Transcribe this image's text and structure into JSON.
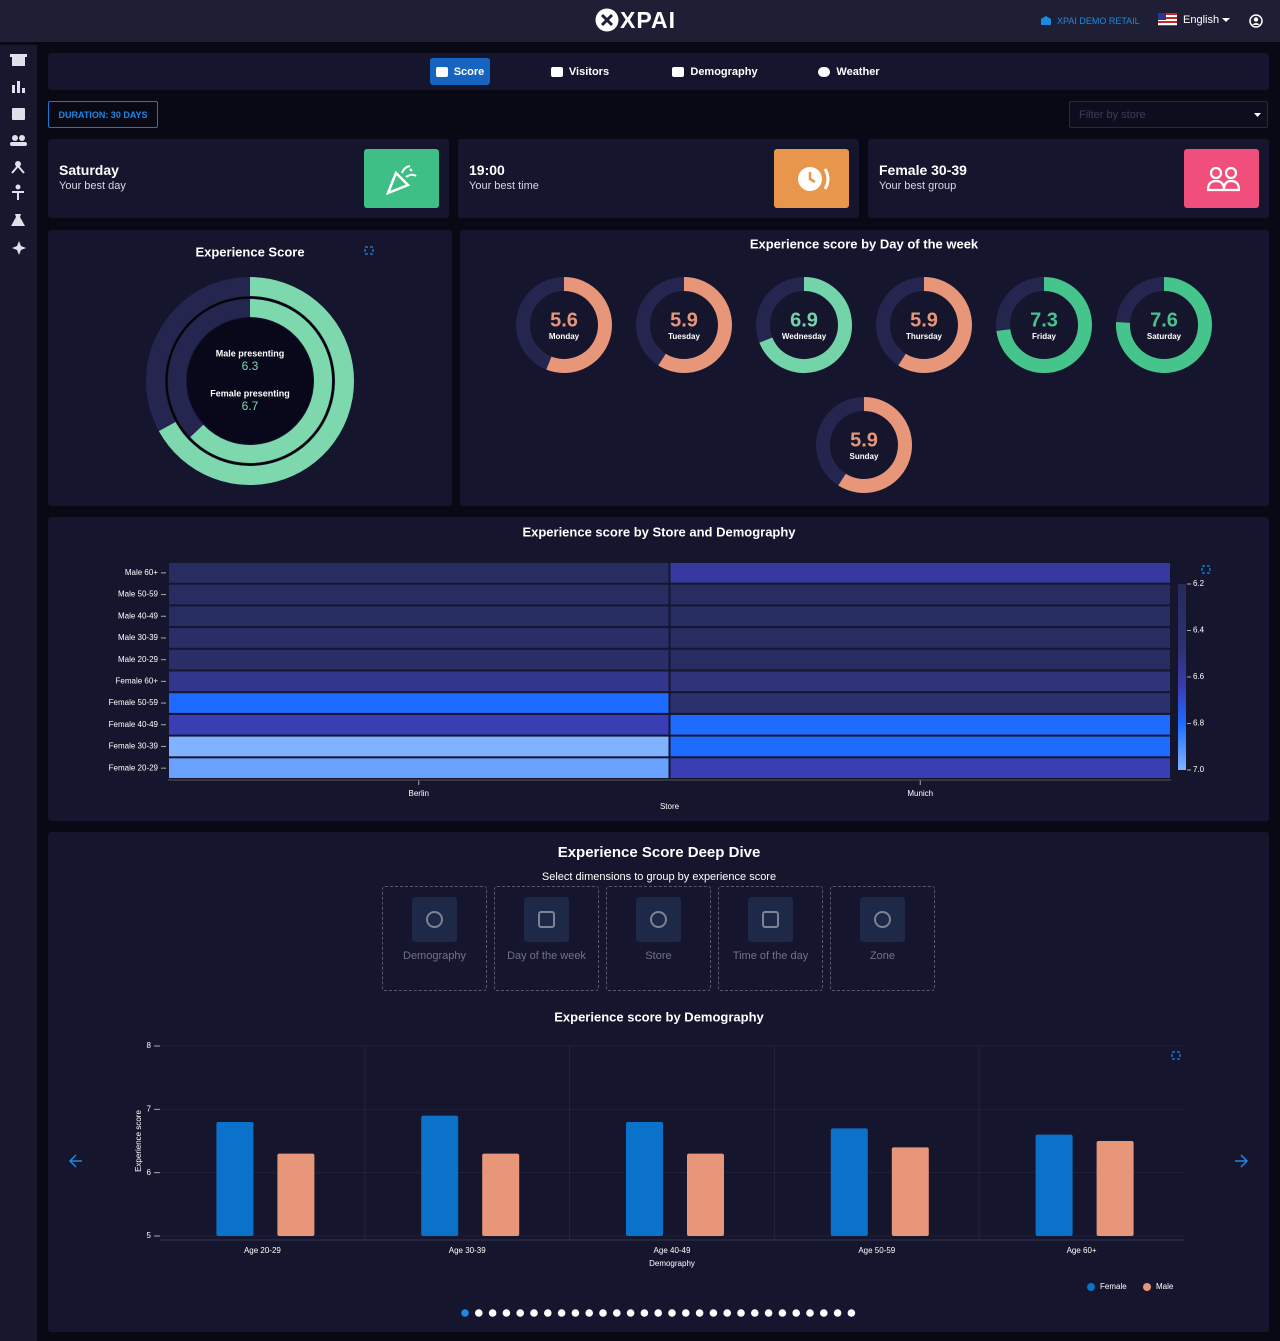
{
  "header": {
    "logo": "XPAI",
    "account": "XPAI DEMO RETAIL",
    "language": "English"
  },
  "tabs": [
    "Score",
    "Visitors",
    "Demography",
    "Weather"
  ],
  "toolbar": {
    "duration": "DURATION: 30 DAYS",
    "filter_placeholder": "Filter by store"
  },
  "cards": [
    {
      "title": "Saturday",
      "subtitle": "Your best day",
      "color": "#3dbf85"
    },
    {
      "title": "19:00",
      "subtitle": "Your best time",
      "color": "#e8964b"
    },
    {
      "title": "Female 30-39",
      "subtitle": "Your best group",
      "color": "#ef4f7a"
    }
  ],
  "deep_dive": {
    "title": "Experience Score Deep Dive",
    "subtitle": "Select dimensions to group by experience score",
    "dimensions": [
      "Demography",
      "Day of the week",
      "Store",
      "Time of the day",
      "Zone"
    ]
  },
  "chart_data": [
    {
      "type": "donut",
      "title": "Experience Score",
      "range": [
        0,
        10
      ],
      "track_color": "#25264f",
      "series": [
        {
          "name": "Male presenting",
          "value": 6.3,
          "color": "#7dd8ad"
        },
        {
          "name": "Female presenting",
          "value": 6.7,
          "color": "#7dd8ad"
        }
      ]
    },
    {
      "type": "gauges",
      "title": "Experience score by Day of the week",
      "range": [
        0,
        10
      ],
      "track_color": "#25264f",
      "categories": [
        "Monday",
        "Tuesday",
        "Wednesday",
        "Thursday",
        "Friday",
        "Saturday",
        "Sunday"
      ],
      "values": [
        5.6,
        5.9,
        6.9,
        5.9,
        7.3,
        7.6,
        5.9
      ],
      "colors": [
        "#e8967a",
        "#e8967a",
        "#72d4a8",
        "#e8967a",
        "#45c58c",
        "#45c58c",
        "#e8967a"
      ]
    },
    {
      "type": "heatmap",
      "title": "Experience score by Store and Demography",
      "xlabel": "Store",
      "x": [
        "Berlin",
        "Munich"
      ],
      "categories": [
        "Male 60+",
        "Male 50-59",
        "Male 40-49",
        "Male 30-39",
        "Male 20-29",
        "Female 60+",
        "Female 50-59",
        "Female 40-49",
        "Female 30-39",
        "Female 20-29"
      ],
      "values": [
        [
          6.3,
          6.6
        ],
        [
          6.3,
          6.3
        ],
        [
          6.3,
          6.3
        ],
        [
          6.35,
          6.3
        ],
        [
          6.35,
          6.3
        ],
        [
          6.55,
          6.5
        ],
        [
          6.8,
          6.45
        ],
        [
          6.65,
          6.8
        ],
        [
          7.0,
          6.8
        ],
        [
          6.95,
          6.65
        ]
      ],
      "zlim": [
        6.2,
        7.0
      ],
      "zticks": [
        6.2,
        6.4,
        6.6,
        6.8,
        {
          "value": 7,
          "label": "7.0"
        }
      ],
      "colorscale": [
        [
          0,
          "#262a58"
        ],
        [
          0.35,
          "#2c3272"
        ],
        [
          0.55,
          "#3b3bb0"
        ],
        [
          0.75,
          "#1e6bff"
        ],
        [
          1,
          "#80b3ff"
        ]
      ]
    },
    {
      "type": "bar",
      "title": "Experience score by Demography",
      "xlabel": "Demography",
      "ylabel": "Experience score",
      "categories": [
        "Age 20-29",
        "Age 30-39",
        "Age 40-49",
        "Age 50-59",
        "Age 60+"
      ],
      "series": [
        {
          "name": "Female",
          "color": "#0a72c8",
          "values": [
            6.8,
            6.9,
            6.8,
            6.7,
            6.6
          ]
        },
        {
          "name": "Male",
          "color": "#e8967a",
          "values": [
            6.3,
            6.3,
            6.3,
            6.4,
            6.5
          ]
        }
      ],
      "ylim": [
        5,
        8
      ],
      "yticks": [
        5,
        6,
        7,
        8
      ],
      "grid": true,
      "legend": "bottom-right"
    }
  ]
}
